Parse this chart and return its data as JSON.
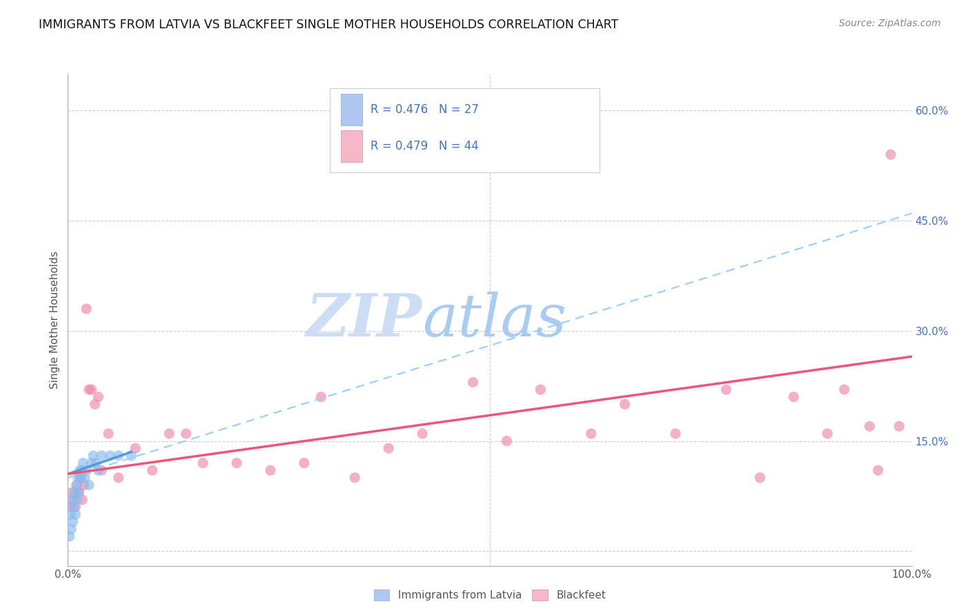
{
  "title": "IMMIGRANTS FROM LATVIA VS BLACKFEET SINGLE MOTHER HOUSEHOLDS CORRELATION CHART",
  "source": "Source: ZipAtlas.com",
  "ylabel": "Single Mother Households",
  "ytick_vals": [
    0.0,
    0.15,
    0.3,
    0.45,
    0.6
  ],
  "ytick_labels": [
    "",
    "15.0%",
    "30.0%",
    "45.0%",
    "60.0%"
  ],
  "xlim": [
    0.0,
    1.0
  ],
  "ylim": [
    -0.02,
    0.65
  ],
  "legend_entries": [
    {
      "label": "R = 0.476   N = 27",
      "color": "#aec6f0",
      "edge": "#88aadd"
    },
    {
      "label": "R = 0.479   N = 44",
      "color": "#f4b8c8",
      "edge": "#dd88aa"
    }
  ],
  "bottom_legend": [
    "Immigrants from Latvia",
    "Blackfeet"
  ],
  "blue_scatter_x": [
    0.002,
    0.003,
    0.004,
    0.005,
    0.006,
    0.007,
    0.008,
    0.009,
    0.01,
    0.011,
    0.012,
    0.013,
    0.014,
    0.015,
    0.016,
    0.018,
    0.02,
    0.022,
    0.025,
    0.028,
    0.03,
    0.033,
    0.036,
    0.04,
    0.05,
    0.06,
    0.075
  ],
  "blue_scatter_y": [
    0.02,
    0.05,
    0.03,
    0.07,
    0.04,
    0.06,
    0.08,
    0.05,
    0.09,
    0.07,
    0.1,
    0.08,
    0.11,
    0.1,
    0.11,
    0.12,
    0.1,
    0.11,
    0.09,
    0.12,
    0.13,
    0.12,
    0.11,
    0.13,
    0.13,
    0.13,
    0.13
  ],
  "pink_scatter_x": [
    0.003,
    0.005,
    0.007,
    0.009,
    0.011,
    0.013,
    0.015,
    0.017,
    0.019,
    0.022,
    0.025,
    0.028,
    0.032,
    0.036,
    0.04,
    0.048,
    0.06,
    0.08,
    0.1,
    0.12,
    0.14,
    0.16,
    0.2,
    0.24,
    0.28,
    0.3,
    0.34,
    0.38,
    0.42,
    0.48,
    0.52,
    0.56,
    0.62,
    0.66,
    0.72,
    0.78,
    0.82,
    0.86,
    0.9,
    0.92,
    0.95,
    0.96,
    0.975,
    0.985
  ],
  "pink_scatter_y": [
    0.06,
    0.08,
    0.07,
    0.06,
    0.09,
    0.08,
    0.1,
    0.07,
    0.09,
    0.33,
    0.22,
    0.22,
    0.2,
    0.21,
    0.11,
    0.16,
    0.1,
    0.14,
    0.11,
    0.16,
    0.16,
    0.12,
    0.12,
    0.11,
    0.12,
    0.21,
    0.1,
    0.14,
    0.16,
    0.23,
    0.15,
    0.22,
    0.16,
    0.2,
    0.16,
    0.22,
    0.1,
    0.21,
    0.16,
    0.22,
    0.17,
    0.11,
    0.54,
    0.17
  ],
  "blue_line_x": [
    0.0,
    0.075
  ],
  "blue_line_y": [
    0.105,
    0.135
  ],
  "dashed_line_x": [
    0.0,
    1.0
  ],
  "dashed_line_y": [
    0.1,
    0.46
  ],
  "pink_line_x": [
    0.0,
    1.0
  ],
  "pink_line_y": [
    0.105,
    0.265
  ],
  "blue_line_color": "#5599dd",
  "pink_line_color": "#ee5577",
  "dashed_line_color": "#99ccff",
  "blue_dot_color": "#88bbee",
  "pink_dot_color": "#ee88aa",
  "title_fontsize": 12.5,
  "source_fontsize": 10,
  "axis_color": "#555555",
  "ytick_color": "#4472c4",
  "grid_color": "#ccccdd",
  "watermark_zip_color": "#ccddf5",
  "watermark_atlas_color": "#aaccee"
}
